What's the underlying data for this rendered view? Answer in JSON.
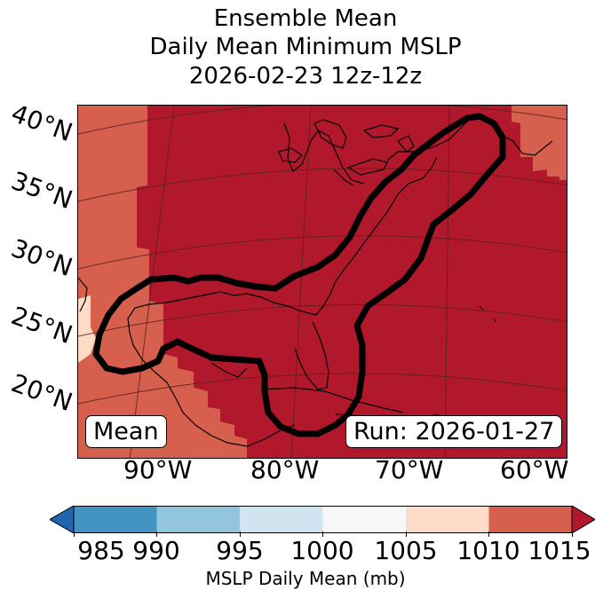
{
  "title": {
    "line1": "Ensemble Mean",
    "line2": "Daily Mean Minimum MSLP",
    "line3": "2026-02-23 12z-12z"
  },
  "map": {
    "latitude_labels": [
      "40°N",
      "35°N",
      "30°N",
      "25°N",
      "20°N"
    ],
    "longitude_labels": [
      "90°W",
      "80°W",
      "70°W",
      "60°W"
    ],
    "contour_color": "#000000",
    "graticule_color": "#5a2020"
  },
  "annotations": {
    "left_box": "Mean",
    "right_box": "Run: 2026-01-27"
  },
  "colorbar": {
    "label": "MSLP Daily Mean (mb)",
    "ticks": [
      "985",
      "990",
      "995",
      "1000",
      "1005",
      "1010",
      "1015"
    ],
    "colors": {
      "below": "#2166ac",
      "985-990": "#4393c3",
      "990-995": "#92c5de",
      "995-1000": "#d1e5f0",
      "1000-1005": "#f7f7f7",
      "1005-1010": "#fddbc7",
      "1010-1015": "#d6604d",
      "above": "#b2182b"
    }
  }
}
